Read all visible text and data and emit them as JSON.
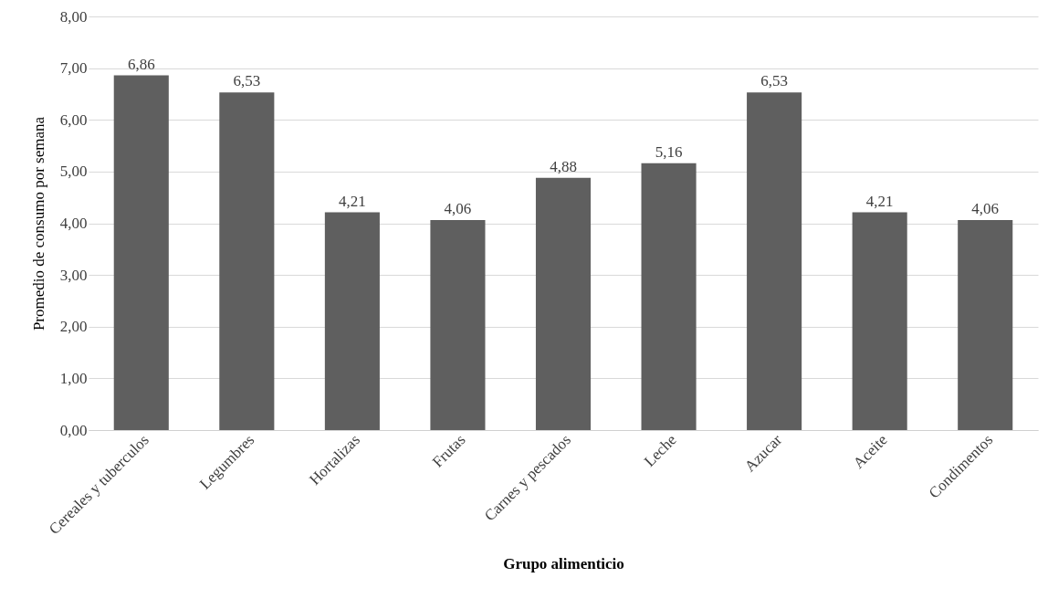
{
  "chart_data": {
    "type": "bar",
    "xlabel": "Grupo alimenticio",
    "ylabel": "Promedio de consumo por semana",
    "categories": [
      "Cereales y tuberculos",
      "Legumbres",
      "Hortalizas",
      "Frutas",
      "Carnes y pescados",
      "Leche",
      "Azucar",
      "Aceite",
      "Condimentos"
    ],
    "values": [
      6.86,
      6.53,
      4.21,
      4.06,
      4.88,
      5.16,
      6.53,
      4.21,
      4.06
    ],
    "value_labels": [
      "6,86",
      "6,53",
      "4,21",
      "4,06",
      "4,88",
      "5,16",
      "6,53",
      "4,21",
      "4,06"
    ],
    "color": "#5f5f5f",
    "ylim": [
      0,
      8
    ],
    "yticks": [
      {
        "value": 0,
        "label": "0,00"
      },
      {
        "value": 1,
        "label": "1,00"
      },
      {
        "value": 2,
        "label": "2,00"
      },
      {
        "value": 3,
        "label": "3,00"
      },
      {
        "value": 4,
        "label": "4,00"
      },
      {
        "value": 5,
        "label": "5,00"
      },
      {
        "value": 6,
        "label": "6,00"
      },
      {
        "value": 7,
        "label": "7,00"
      },
      {
        "value": 8,
        "label": "8,00"
      }
    ],
    "grid": "y"
  }
}
